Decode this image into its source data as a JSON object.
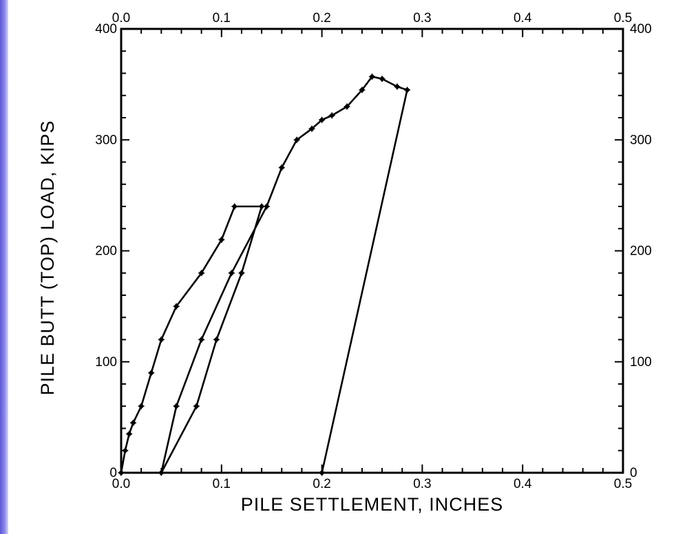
{
  "chart_data": {
    "type": "line",
    "title": "",
    "xlabel": "PILE SETTLEMENT, INCHES",
    "ylabel": "PILE BUTT (TOP) LOAD, KIPS",
    "xlim": [
      0.0,
      0.5
    ],
    "ylim": [
      0,
      400
    ],
    "x_ticks": [
      "0.0",
      "0.1",
      "0.2",
      "0.3",
      "0.4",
      "0.5"
    ],
    "y_ticks": [
      "0",
      "100",
      "200",
      "300",
      "400"
    ],
    "axes_on_all_sides": true,
    "grid": false,
    "legend": "none",
    "series": [
      {
        "points": [
          [
            0.0,
            0
          ],
          [
            0.004,
            20
          ],
          [
            0.008,
            35
          ],
          [
            0.012,
            45
          ],
          [
            0.02,
            60
          ],
          [
            0.03,
            90
          ],
          [
            0.04,
            120
          ],
          [
            0.055,
            150
          ],
          [
            0.08,
            180
          ],
          [
            0.1,
            210
          ],
          [
            0.113,
            240
          ],
          [
            0.14,
            240
          ],
          [
            0.12,
            180
          ],
          [
            0.095,
            120
          ],
          [
            0.075,
            60
          ],
          [
            0.04,
            0
          ],
          [
            0.055,
            60
          ],
          [
            0.08,
            120
          ],
          [
            0.11,
            180
          ],
          [
            0.145,
            240
          ],
          [
            0.16,
            275
          ],
          [
            0.175,
            300
          ],
          [
            0.19,
            310
          ],
          [
            0.2,
            318
          ],
          [
            0.21,
            322
          ],
          [
            0.225,
            330
          ],
          [
            0.24,
            345
          ],
          [
            0.25,
            357
          ],
          [
            0.26,
            355
          ],
          [
            0.275,
            348
          ],
          [
            0.285,
            345
          ],
          [
            0.2,
            0
          ]
        ]
      }
    ]
  }
}
